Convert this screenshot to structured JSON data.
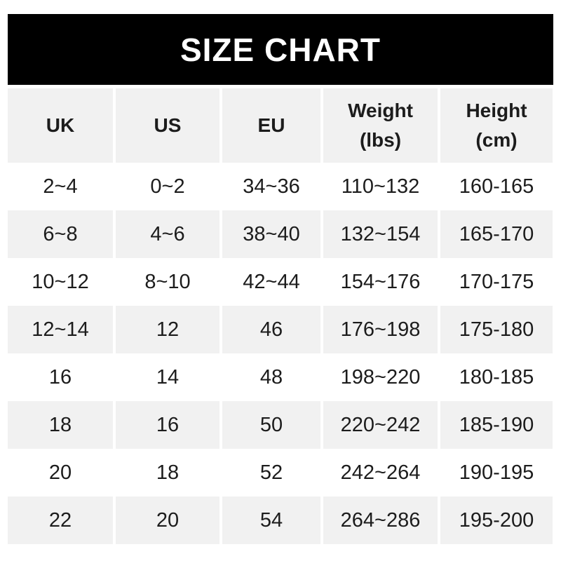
{
  "chart_data": {
    "type": "table",
    "title": "SIZE CHART",
    "columns": [
      "UK",
      "US",
      "EU",
      "Weight\n(lbs)",
      "Height\n(cm)"
    ],
    "rows": [
      [
        "2~4",
        "0~2",
        "34~36",
        "110~132",
        "160-165"
      ],
      [
        "6~8",
        "4~6",
        "38~40",
        "132~154",
        "165-170"
      ],
      [
        "10~12",
        "8~10",
        "42~44",
        "154~176",
        "170-175"
      ],
      [
        "12~14",
        "12",
        "46",
        "176~198",
        "175-180"
      ],
      [
        "16",
        "14",
        "48",
        "198~220",
        "180-185"
      ],
      [
        "18",
        "16",
        "50",
        "220~242",
        "185-190"
      ],
      [
        "20",
        "18",
        "52",
        "242~264",
        "190-195"
      ],
      [
        "22",
        "20",
        "54",
        "264~286",
        "195-200"
      ]
    ],
    "layout": {
      "stripe_pattern": "even-data-rows-gray",
      "header_background": "gray"
    }
  },
  "colors": {
    "banner_background": "#000000",
    "banner_text": "#ffffff",
    "row_stripe": "#f1f1f1",
    "text": "#1c1c1c",
    "page_background": "#ffffff"
  }
}
